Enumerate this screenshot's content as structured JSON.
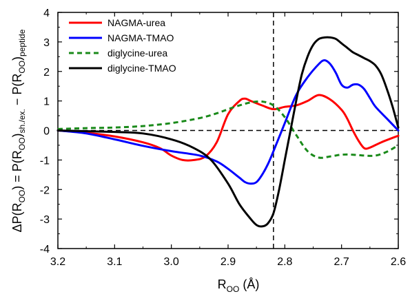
{
  "chart_data": {
    "type": "line",
    "xlim": [
      3.2,
      2.6
    ],
    "ylim": [
      -4,
      4
    ],
    "x_ticks": [
      "3.2",
      "3.1",
      "3.0",
      "2.9",
      "2.8",
      "2.7",
      "2.6"
    ],
    "y_ticks": [
      "4",
      "3",
      "2",
      "1",
      "0",
      "-1",
      "-2",
      "-3",
      "-4"
    ],
    "x_tick_values": [
      3.2,
      3.1,
      3.0,
      2.9,
      2.8,
      2.7,
      2.6
    ],
    "y_tick_values": [
      4,
      3,
      2,
      1,
      0,
      -1,
      -2,
      -3,
      -4
    ],
    "xlabel": {
      "main": "R",
      "sub": "OO",
      "tail": " (Å)"
    },
    "ylabel": {
      "p1": "ΔP(R",
      "s1": "OO",
      "p2": ") = P(R",
      "s2": "OO",
      "p3": ")",
      "s3": "sh./ex.",
      "p4": " − P(R",
      "s4": "OO",
      "p5": ")",
      "s5": "peptide"
    },
    "reference_lines": {
      "horizontal_y": 0,
      "vertical_x": 2.82
    },
    "legend_position": "top-left",
    "series": [
      {
        "name": "NAGMA-urea",
        "color": "#ff0000",
        "dash": "solid",
        "x": [
          3.2,
          3.15,
          3.1,
          3.05,
          3.02,
          3.0,
          2.98,
          2.96,
          2.94,
          2.92,
          2.9,
          2.88,
          2.87,
          2.86,
          2.84,
          2.82,
          2.8,
          2.78,
          2.76,
          2.74,
          2.72,
          2.7,
          2.69,
          2.68,
          2.67,
          2.66,
          2.65,
          2.63,
          2.61,
          2.6
        ],
        "y": [
          0.0,
          -0.08,
          -0.2,
          -0.4,
          -0.6,
          -0.85,
          -1.0,
          -1.0,
          -0.88,
          -0.4,
          0.55,
          1.0,
          1.08,
          1.0,
          0.85,
          0.72,
          0.8,
          0.85,
          1.0,
          1.2,
          1.05,
          0.7,
          0.4,
          0.0,
          -0.35,
          -0.6,
          -0.58,
          -0.4,
          -0.25,
          -0.18
        ]
      },
      {
        "name": "NAGMA-TMAO",
        "color": "#0000ff",
        "dash": "solid",
        "x": [
          3.2,
          3.15,
          3.1,
          3.05,
          3.0,
          2.95,
          2.92,
          2.9,
          2.88,
          2.87,
          2.86,
          2.85,
          2.84,
          2.83,
          2.82,
          2.8,
          2.78,
          2.76,
          2.74,
          2.73,
          2.72,
          2.71,
          2.7,
          2.69,
          2.68,
          2.67,
          2.66,
          2.65,
          2.64,
          2.62,
          2.6
        ],
        "y": [
          0.0,
          -0.1,
          -0.3,
          -0.52,
          -0.7,
          -0.85,
          -1.05,
          -1.3,
          -1.6,
          -1.75,
          -1.8,
          -1.75,
          -1.5,
          -1.15,
          -0.7,
          0.25,
          1.2,
          1.8,
          2.25,
          2.38,
          2.25,
          1.95,
          1.55,
          1.45,
          1.55,
          1.55,
          1.4,
          1.1,
          0.8,
          0.4,
          0.0
        ]
      },
      {
        "name": "diglycine-urea",
        "color": "#1a8a1a",
        "dash": "dashed",
        "x": [
          3.2,
          3.15,
          3.1,
          3.05,
          3.0,
          2.95,
          2.92,
          2.9,
          2.88,
          2.86,
          2.84,
          2.82,
          2.8,
          2.78,
          2.76,
          2.74,
          2.72,
          2.7,
          2.68,
          2.66,
          2.64,
          2.62,
          2.6
        ],
        "y": [
          0.05,
          0.08,
          0.1,
          0.15,
          0.25,
          0.42,
          0.58,
          0.72,
          0.85,
          0.95,
          0.98,
          0.85,
          0.45,
          -0.15,
          -0.7,
          -0.92,
          -0.88,
          -0.82,
          -0.82,
          -0.85,
          -0.85,
          -0.72,
          -0.5
        ]
      },
      {
        "name": "diglycine-TMAO",
        "color": "#000000",
        "dash": "solid",
        "x": [
          3.2,
          3.1,
          3.05,
          3.0,
          2.96,
          2.93,
          2.9,
          2.88,
          2.86,
          2.85,
          2.84,
          2.83,
          2.82,
          2.81,
          2.8,
          2.79,
          2.78,
          2.77,
          2.76,
          2.75,
          2.74,
          2.73,
          2.72,
          2.71,
          2.7,
          2.69,
          2.68,
          2.67,
          2.66,
          2.65,
          2.64,
          2.63,
          2.62,
          2.61,
          2.6
        ],
        "y": [
          0.0,
          -0.05,
          -0.1,
          -0.3,
          -0.6,
          -1.0,
          -1.8,
          -2.5,
          -3.0,
          -3.2,
          -3.25,
          -3.15,
          -2.8,
          -2.0,
          -1.0,
          0.0,
          1.0,
          1.9,
          2.5,
          2.9,
          3.1,
          3.15,
          3.15,
          3.1,
          2.95,
          2.8,
          2.65,
          2.55,
          2.45,
          2.35,
          2.2,
          1.9,
          1.4,
          0.8,
          0.1
        ]
      }
    ]
  }
}
